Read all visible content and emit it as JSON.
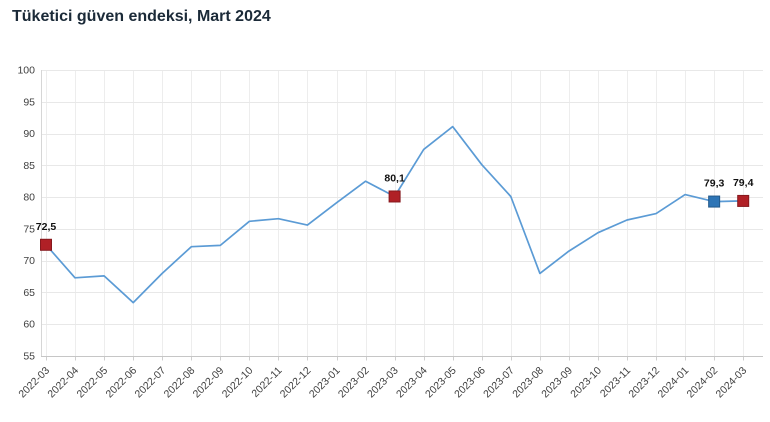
{
  "chart_data": {
    "type": "line",
    "title": "Tüketici güven endeksi, Mart 2024",
    "xlabel": "",
    "ylabel": "",
    "x": [
      "2022-03",
      "2022-04",
      "2022-05",
      "2022-06",
      "2022-07",
      "2022-08",
      "2022-09",
      "2022-10",
      "2022-11",
      "2022-12",
      "2023-01",
      "2023-02",
      "2023-03",
      "2023-04",
      "2023-05",
      "2023-06",
      "2023-07",
      "2023-08",
      "2023-09",
      "2023-10",
      "2023-11",
      "2023-12",
      "2024-01",
      "2024-02",
      "2024-03"
    ],
    "values": [
      72.5,
      67.3,
      67.6,
      63.4,
      68.0,
      72.2,
      72.4,
      76.2,
      76.6,
      75.6,
      79.1,
      82.5,
      80.1,
      87.5,
      91.1,
      85.1,
      80.1,
      68.0,
      71.5,
      74.4,
      76.4,
      77.4,
      80.4,
      79.3,
      79.4
    ],
    "ylim": [
      55,
      100
    ],
    "yticks": [
      100,
      95,
      90,
      85,
      80,
      75,
      70,
      65,
      60,
      55
    ],
    "grid": true,
    "legend": "none",
    "line_color": "#5b9bd5",
    "markers": [
      {
        "index": 0,
        "label": "72,5",
        "color": "#b02026"
      },
      {
        "index": 12,
        "label": "80,1",
        "color": "#b02026"
      },
      {
        "index": 23,
        "label": "79,3",
        "color": "#2e75b6"
      },
      {
        "index": 24,
        "label": "79,4",
        "color": "#b02026"
      }
    ],
    "colors": {
      "title": "#1b2a38",
      "axis_text": "#404040",
      "marker_label": "#111111",
      "gridline": "#e8e8e8",
      "axis_line": "#c6c6c6"
    }
  }
}
